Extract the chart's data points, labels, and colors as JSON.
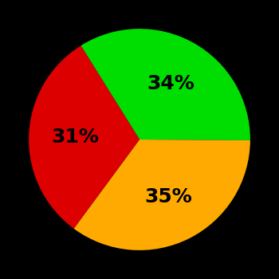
{
  "slices": [
    34,
    35,
    31
  ],
  "colors": [
    "#00dd00",
    "#ffaa00",
    "#dd0000"
  ],
  "labels": [
    "34%",
    "35%",
    "31%"
  ],
  "background_color": "#000000",
  "text_color": "#000000",
  "text_fontsize": 18,
  "text_fontweight": "bold",
  "startangle": 122,
  "counterclock": false,
  "label_distance": 0.58
}
